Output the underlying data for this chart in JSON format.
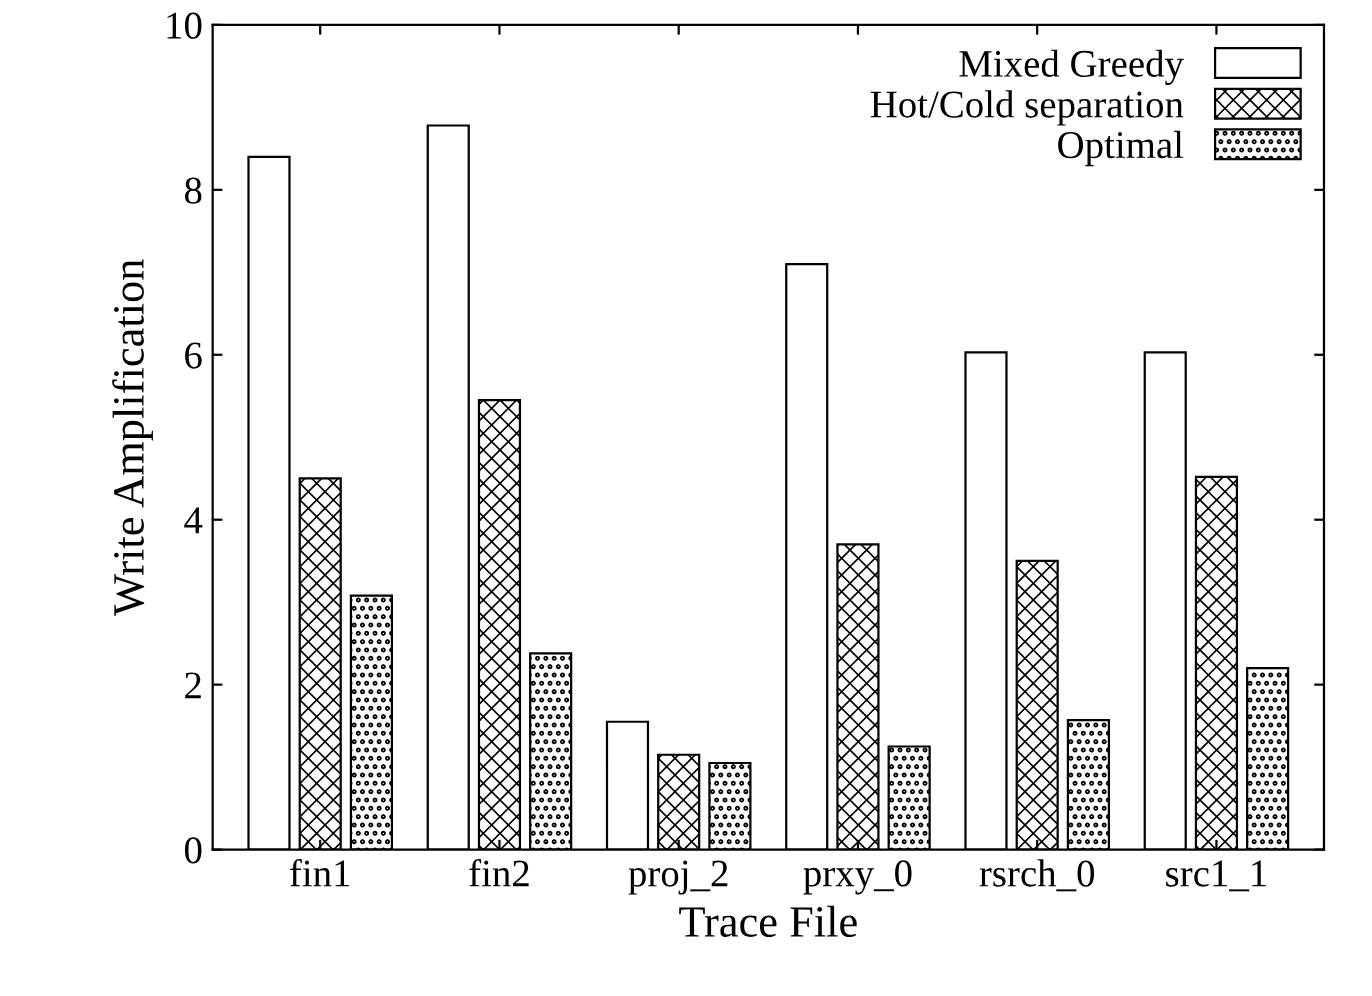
{
  "chart_data": {
    "type": "bar",
    "xlabel": "Trace File",
    "ylabel": "Write Amplification",
    "categories": [
      "fin1",
      "fin2",
      "proj_2",
      "prxy_0",
      "rsrch_0",
      "src1_1"
    ],
    "series": [
      {
        "name": "Mixed Greedy",
        "color": "#ffffff",
        "values": [
          8.4,
          8.78,
          1.55,
          7.1,
          6.03,
          6.03
        ]
      },
      {
        "name": "Hot/Cold separation",
        "color": "#000000",
        "values": [
          4.5,
          5.45,
          1.15,
          3.7,
          3.5,
          4.52
        ]
      },
      {
        "name": "Optimal",
        "color": "#000000",
        "values": [
          3.08,
          2.38,
          1.05,
          1.25,
          1.57,
          2.2
        ]
      }
    ],
    "ylim": [
      0,
      10
    ],
    "yticks": [
      0,
      2,
      4,
      6,
      8,
      10
    ],
    "grid": false,
    "legend": "top right"
  }
}
